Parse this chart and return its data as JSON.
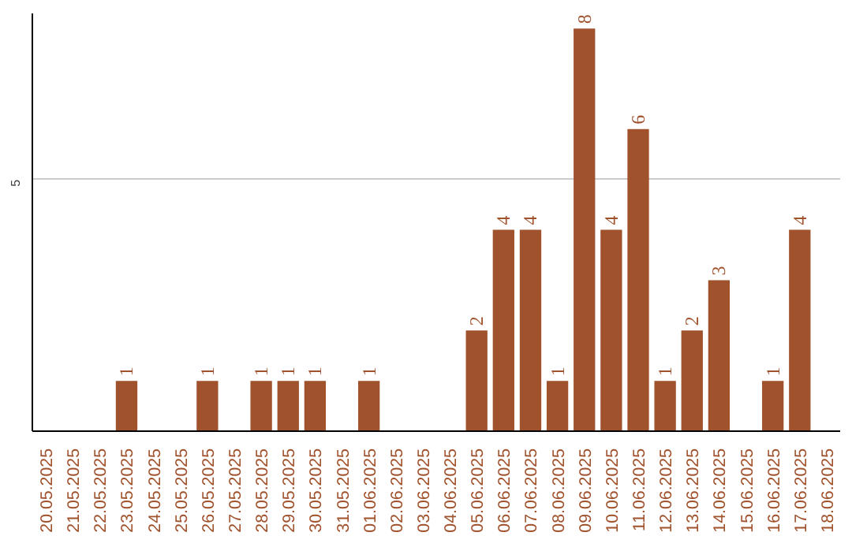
{
  "chart_data": {
    "type": "bar",
    "categories": [
      "20.05.2025",
      "21.05.2025",
      "22.05.2025",
      "23.05.2025",
      "24.05.2025",
      "25.05.2025",
      "26.05.2025",
      "27.05.2025",
      "28.05.2025",
      "29.05.2025",
      "30.05.2025",
      "31.05.2025",
      "01.06.2025",
      "02.06.2025",
      "03.06.2025",
      "04.06.2025",
      "05.06.2025",
      "06.06.2025",
      "07.06.2025",
      "08.06.2025",
      "09.06.2025",
      "10.06.2025",
      "11.06.2025",
      "12.06.2025",
      "13.06.2025",
      "14.06.2025",
      "15.06.2025",
      "16.06.2025",
      "17.06.2025",
      "18.06.2025"
    ],
    "values": [
      null,
      null,
      null,
      1,
      null,
      null,
      1,
      null,
      1,
      1,
      1,
      null,
      1,
      null,
      null,
      null,
      2,
      4,
      4,
      1,
      8,
      4,
      6,
      1,
      2,
      3,
      null,
      1,
      4,
      null
    ],
    "color": "#a0522d",
    "ylim": [
      0,
      8.3
    ],
    "yticks": [
      5
    ],
    "grid": "y",
    "data_labels": true
  }
}
